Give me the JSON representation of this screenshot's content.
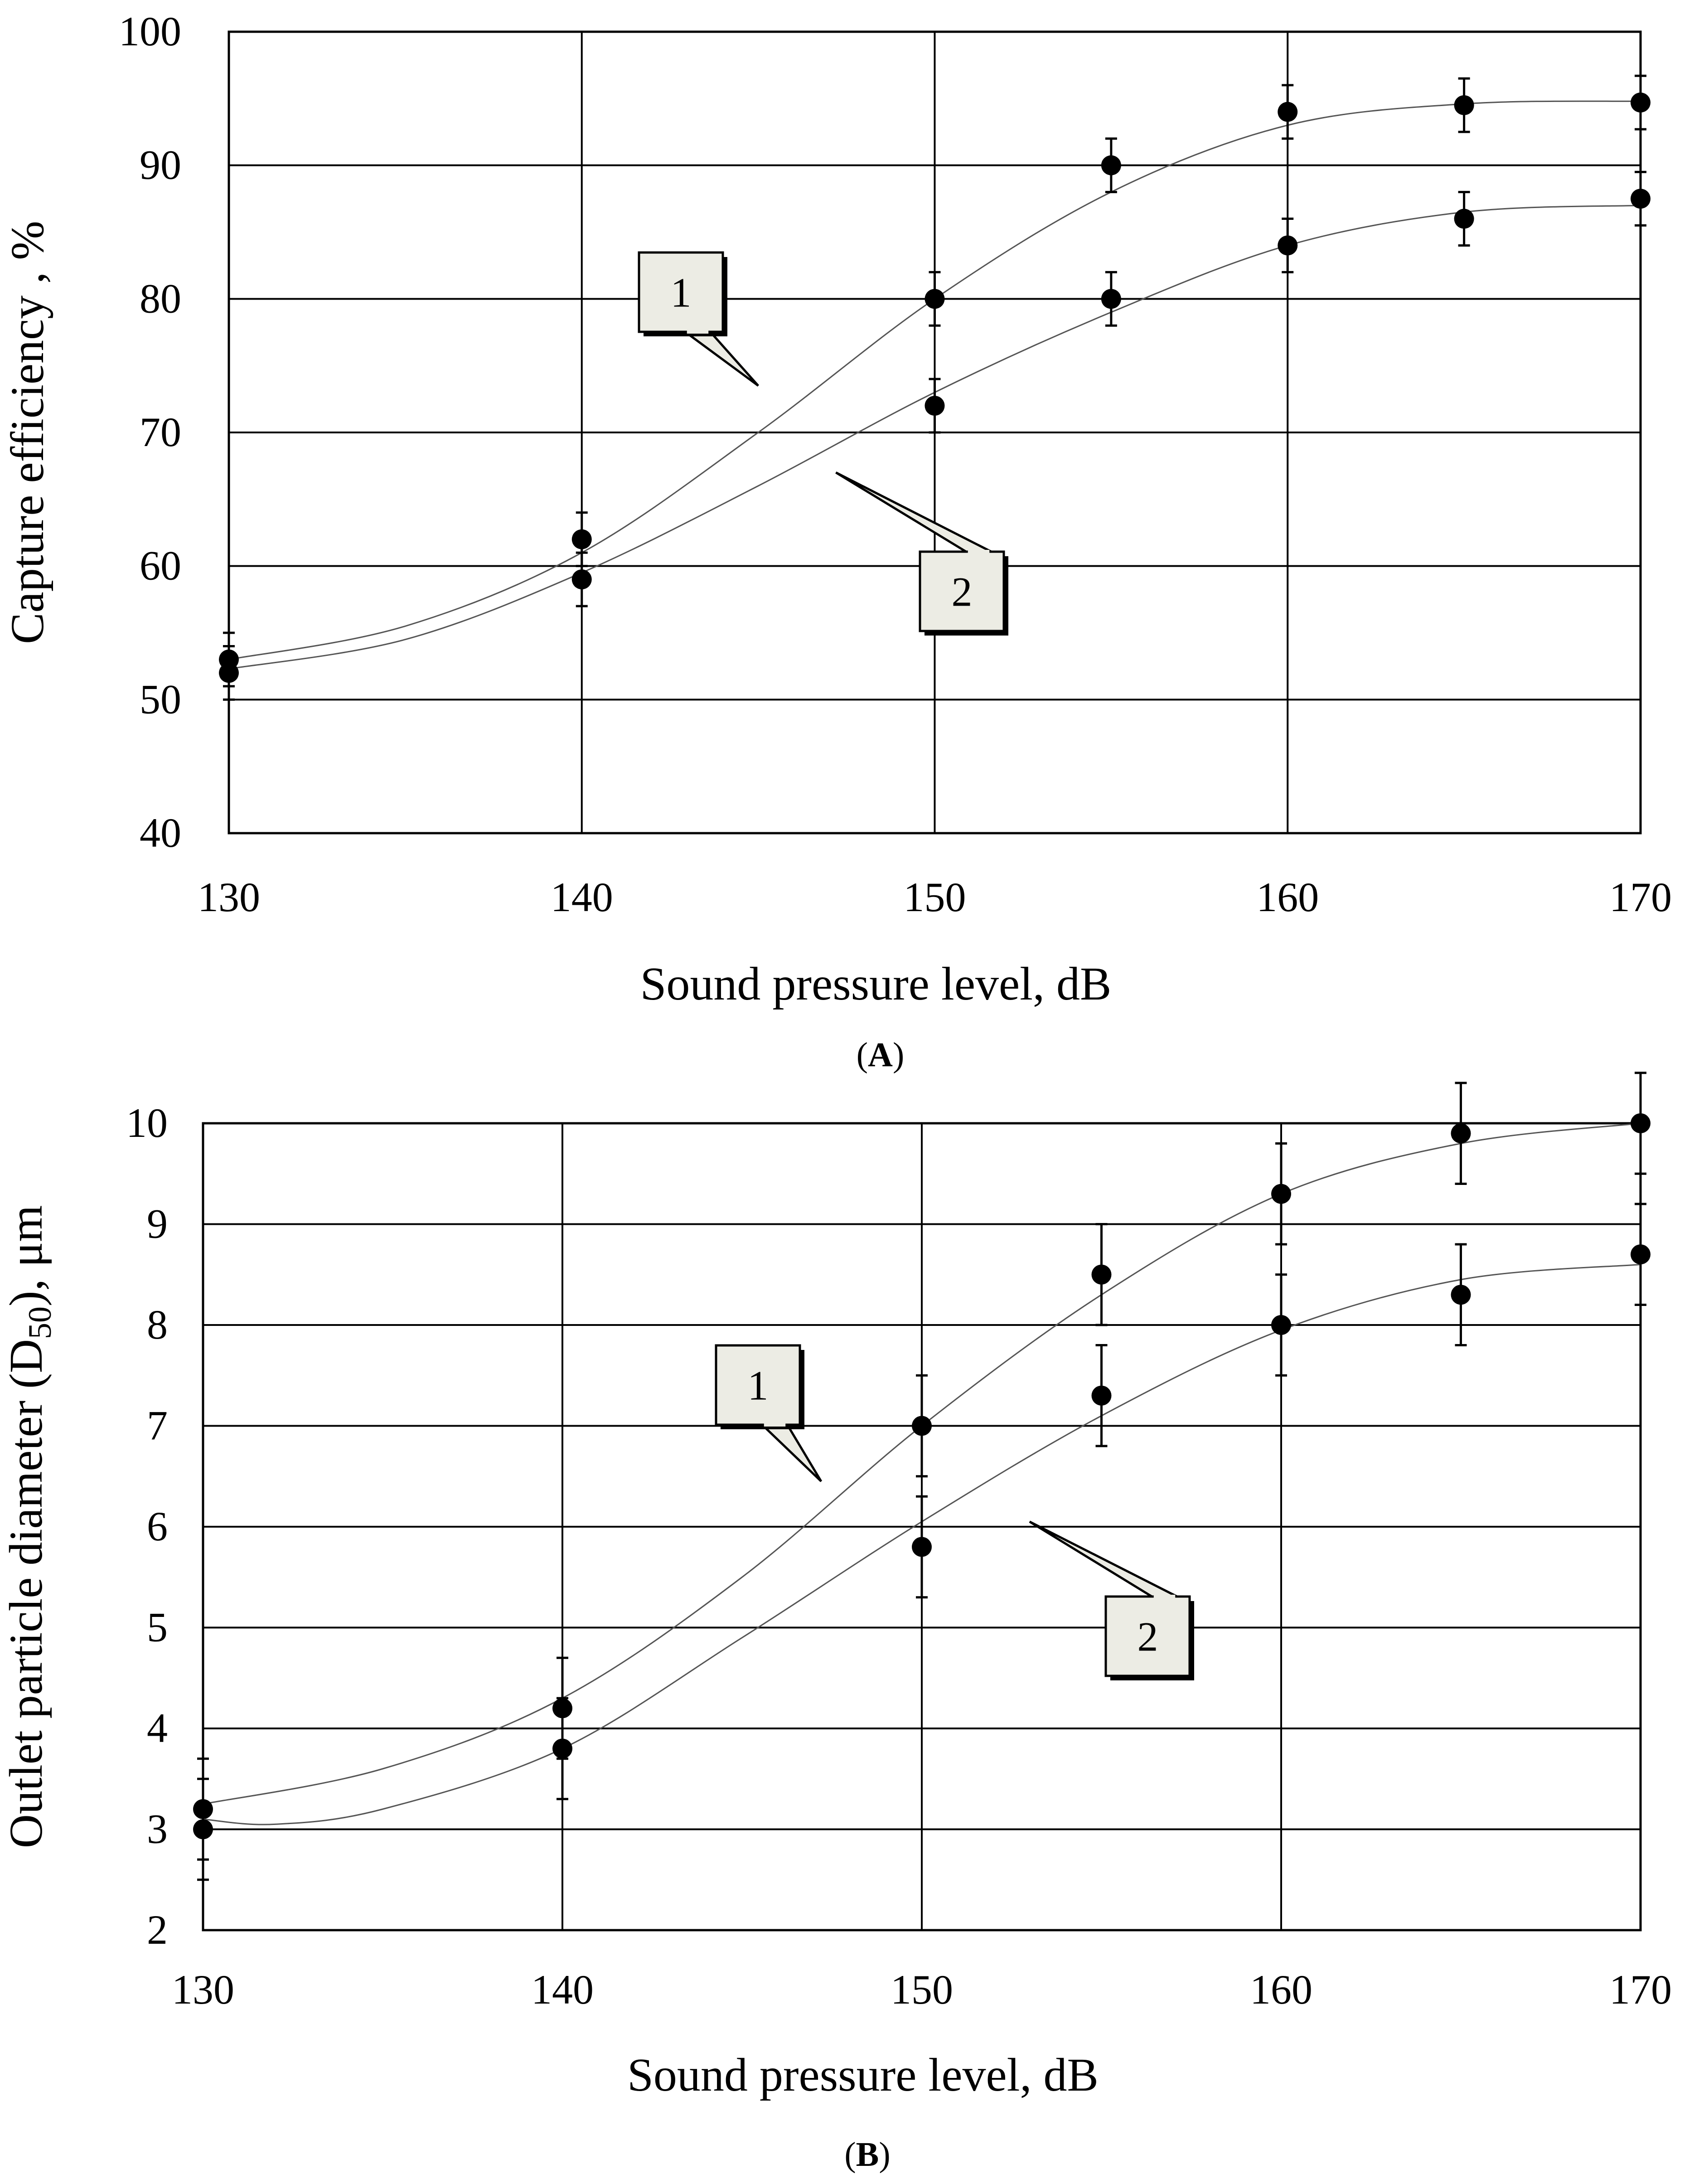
{
  "chart_data": [
    {
      "panel_id": "A",
      "type": "scatter",
      "caption": "A",
      "xlabel": "Sound pressure level, dB",
      "ylabel": "Capture efficiency , %",
      "xlim": [
        130,
        170
      ],
      "ylim": [
        40,
        100
      ],
      "x_ticks": [
        130,
        140,
        150,
        160,
        170
      ],
      "y_ticks": [
        40,
        50,
        60,
        70,
        80,
        90,
        100
      ],
      "grid": true,
      "series": [
        {
          "name": "1",
          "x": [
            130,
            140,
            150,
            155,
            160,
            165,
            170
          ],
          "y": [
            53,
            62,
            80,
            90,
            94,
            94.5,
            94.7
          ],
          "error": [
            2,
            2,
            2,
            2,
            2,
            2,
            2
          ],
          "trend": [
            [
              130,
              53
            ],
            [
              135,
              55.5
            ],
            [
              140,
              61
            ],
            [
              145,
              70
            ],
            [
              150,
              80
            ],
            [
              155,
              88
            ],
            [
              160,
              93
            ],
            [
              165,
              94.6
            ],
            [
              170,
              94.8
            ]
          ]
        },
        {
          "name": "2",
          "x": [
            130,
            140,
            150,
            155,
            160,
            165,
            170
          ],
          "y": [
            52,
            59,
            72,
            80,
            84,
            86,
            87.5
          ],
          "error": [
            2,
            2,
            2,
            2,
            2,
            2,
            2
          ],
          "trend": [
            [
              130,
              52.3
            ],
            [
              135,
              54.5
            ],
            [
              140,
              59.5
            ],
            [
              145,
              66
            ],
            [
              150,
              73
            ],
            [
              155,
              79
            ],
            [
              160,
              84
            ],
            [
              165,
              86.5
            ],
            [
              170,
              87
            ]
          ]
        }
      ],
      "annotations": [
        {
          "text": "1",
          "target": [
            145,
            73.5
          ]
        },
        {
          "text": "2",
          "target": [
            147.2,
            67
          ]
        }
      ]
    },
    {
      "panel_id": "B",
      "type": "scatter",
      "caption": "B",
      "xlabel": "Sound pressure level, dB",
      "ylabel": "Outlet particle diameter (D",
      "ylabel_sub": "50",
      "ylabel_end": "), μm",
      "xlim": [
        130,
        170
      ],
      "ylim": [
        2,
        10
      ],
      "x_ticks": [
        130,
        140,
        150,
        160,
        170
      ],
      "y_ticks": [
        2,
        3,
        4,
        5,
        6,
        7,
        8,
        9,
        10
      ],
      "grid": true,
      "series": [
        {
          "name": "1",
          "x": [
            130,
            140,
            150,
            155,
            160,
            165,
            170
          ],
          "y": [
            3.2,
            4.2,
            7.0,
            8.5,
            9.3,
            9.9,
            10.0
          ],
          "error": [
            0.5,
            0.5,
            0.5,
            0.5,
            0.5,
            0.5,
            0.5
          ],
          "trend": [
            [
              130,
              3.25
            ],
            [
              135,
              3.6
            ],
            [
              140,
              4.3
            ],
            [
              145,
              5.5
            ],
            [
              150,
              7.0
            ],
            [
              155,
              8.3
            ],
            [
              160,
              9.3
            ],
            [
              165,
              9.8
            ],
            [
              170,
              10.0
            ]
          ]
        },
        {
          "name": "2",
          "x": [
            130,
            140,
            150,
            155,
            160,
            165,
            170
          ],
          "y": [
            3.0,
            3.8,
            5.8,
            7.3,
            8.0,
            8.3,
            8.7
          ],
          "error": [
            0.5,
            0.5,
            0.5,
            0.5,
            0.5,
            0.5,
            0.5
          ],
          "trend": [
            [
              130,
              3.1
            ],
            [
              132,
              3.05
            ],
            [
              135,
              3.2
            ],
            [
              140,
              3.8
            ],
            [
              145,
              4.9
            ],
            [
              150,
              6.05
            ],
            [
              155,
              7.1
            ],
            [
              160,
              7.95
            ],
            [
              165,
              8.45
            ],
            [
              170,
              8.6
            ]
          ]
        }
      ],
      "annotations": [
        {
          "text": "1",
          "target": [
            147.2,
            6.45
          ]
        },
        {
          "text": "2",
          "target": [
            153,
            6.05
          ]
        }
      ]
    }
  ]
}
